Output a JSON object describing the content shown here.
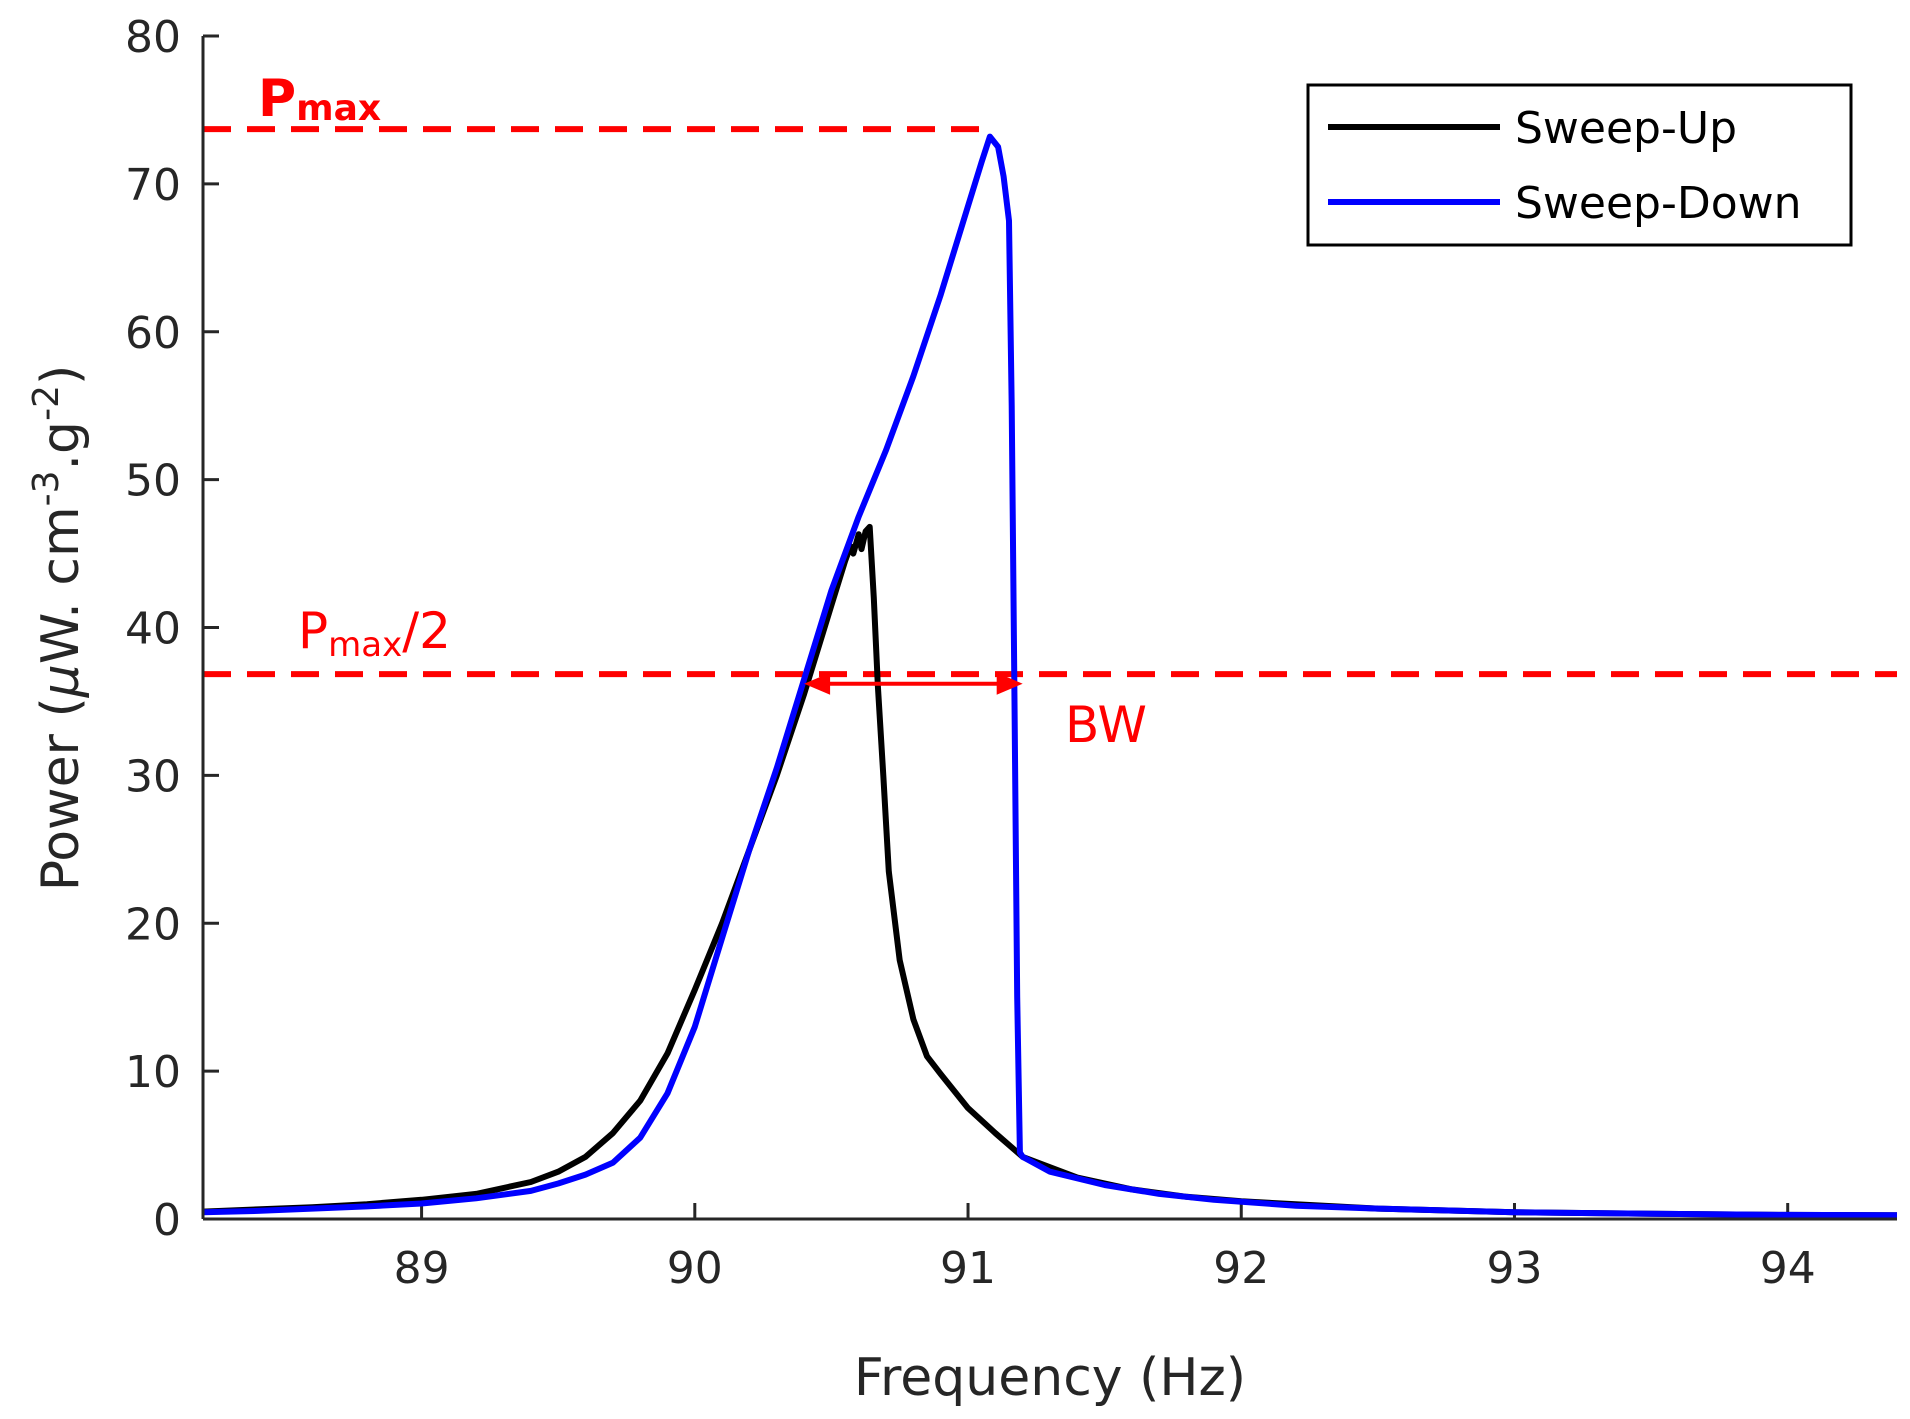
{
  "chart_data": {
    "type": "line",
    "title": "",
    "xlabel": "Frequency (Hz)",
    "ylabel_parts": {
      "main": "Power (",
      "mu": "μ",
      "unit1": "W. cm",
      "exp1": "-3",
      "unit2": ".g",
      "exp2": "-2",
      "close": ")"
    },
    "xlim": [
      88.2,
      94.4
    ],
    "ylim": [
      0,
      80
    ],
    "xticks": [
      89,
      90,
      91,
      92,
      93,
      94
    ],
    "xtick_labels": [
      "89",
      "90",
      "91",
      "92",
      "93",
      "94"
    ],
    "yticks": [
      0,
      10,
      20,
      30,
      40,
      50,
      60,
      70,
      80
    ],
    "ytick_labels": [
      "0",
      "10",
      "20",
      "30",
      "40",
      "50",
      "60",
      "70",
      "80"
    ],
    "grid": false,
    "legend_position": "top-right",
    "series": [
      {
        "name": "Sweep-Up",
        "color": "#000000",
        "points": [
          [
            88.2,
            0.5
          ],
          [
            88.4,
            0.65
          ],
          [
            88.6,
            0.8
          ],
          [
            88.8,
            1.0
          ],
          [
            89.0,
            1.3
          ],
          [
            89.2,
            1.7
          ],
          [
            89.4,
            2.5
          ],
          [
            89.5,
            3.2
          ],
          [
            89.6,
            4.2
          ],
          [
            89.7,
            5.8
          ],
          [
            89.8,
            8.0
          ],
          [
            89.9,
            11.2
          ],
          [
            90.0,
            15.5
          ],
          [
            90.1,
            20.0
          ],
          [
            90.2,
            25.0
          ],
          [
            90.3,
            30.0
          ],
          [
            90.4,
            35.5
          ],
          [
            90.5,
            41.5
          ],
          [
            90.55,
            44.5
          ],
          [
            90.57,
            45.5
          ],
          [
            90.58,
            45.0
          ],
          [
            90.6,
            46.3
          ],
          [
            90.61,
            45.3
          ],
          [
            90.625,
            46.5
          ],
          [
            90.64,
            46.8
          ],
          [
            90.655,
            42.0
          ],
          [
            90.67,
            36.0
          ],
          [
            90.69,
            30.0
          ],
          [
            90.71,
            23.5
          ],
          [
            90.75,
            17.5
          ],
          [
            90.8,
            13.5
          ],
          [
            90.85,
            11.0
          ],
          [
            90.9,
            9.8
          ],
          [
            91.0,
            7.5
          ],
          [
            91.1,
            5.8
          ],
          [
            91.2,
            4.2
          ],
          [
            91.4,
            2.8
          ],
          [
            91.6,
            2.0
          ],
          [
            91.8,
            1.5
          ],
          [
            92.0,
            1.2
          ],
          [
            92.5,
            0.7
          ],
          [
            93.0,
            0.45
          ],
          [
            93.5,
            0.35
          ],
          [
            94.0,
            0.28
          ],
          [
            94.4,
            0.25
          ]
        ]
      },
      {
        "name": "Sweep-Down",
        "color": "#0000ff",
        "points": [
          [
            88.2,
            0.45
          ],
          [
            88.4,
            0.55
          ],
          [
            88.6,
            0.7
          ],
          [
            88.8,
            0.85
          ],
          [
            89.0,
            1.05
          ],
          [
            89.2,
            1.4
          ],
          [
            89.4,
            1.9
          ],
          [
            89.5,
            2.4
          ],
          [
            89.6,
            3.0
          ],
          [
            89.7,
            3.8
          ],
          [
            89.8,
            5.5
          ],
          [
            89.9,
            8.5
          ],
          [
            90.0,
            13.0
          ],
          [
            90.1,
            19.0
          ],
          [
            90.2,
            25.0
          ],
          [
            90.3,
            30.5
          ],
          [
            90.4,
            36.5
          ],
          [
            90.5,
            42.5
          ],
          [
            90.6,
            47.5
          ],
          [
            90.7,
            52.0
          ],
          [
            90.8,
            57.0
          ],
          [
            90.9,
            62.5
          ],
          [
            91.0,
            68.5
          ],
          [
            91.05,
            71.5
          ],
          [
            91.08,
            73.2
          ],
          [
            91.11,
            72.5
          ],
          [
            91.13,
            70.5
          ],
          [
            91.15,
            67.5
          ],
          [
            91.16,
            55.0
          ],
          [
            91.17,
            35.0
          ],
          [
            91.18,
            15.0
          ],
          [
            91.19,
            4.5
          ],
          [
            91.2,
            4.2
          ],
          [
            91.3,
            3.2
          ],
          [
            91.5,
            2.3
          ],
          [
            91.7,
            1.7
          ],
          [
            91.9,
            1.3
          ],
          [
            92.2,
            0.9
          ],
          [
            92.5,
            0.7
          ],
          [
            93.0,
            0.45
          ],
          [
            93.5,
            0.35
          ],
          [
            94.0,
            0.28
          ],
          [
            94.4,
            0.25
          ]
        ]
      }
    ],
    "reference_lines": [
      {
        "name": "Pmax",
        "y": 73.7,
        "x_end": 91.08,
        "color": "#ff0000"
      },
      {
        "name": "Pmax/2",
        "y": 36.85,
        "x_end": 94.4,
        "color": "#ff0000"
      }
    ],
    "bandwidth_arrow": {
      "x_start": 90.4,
      "x_end": 91.2,
      "y": 36.2,
      "color": "#ff0000"
    },
    "annotations": {
      "pmax_label": {
        "main": "P",
        "sub": "max"
      },
      "pmax_half_label": {
        "main": "P",
        "sub": "max",
        "suffix": "/2"
      },
      "bw_label": "BW"
    }
  }
}
